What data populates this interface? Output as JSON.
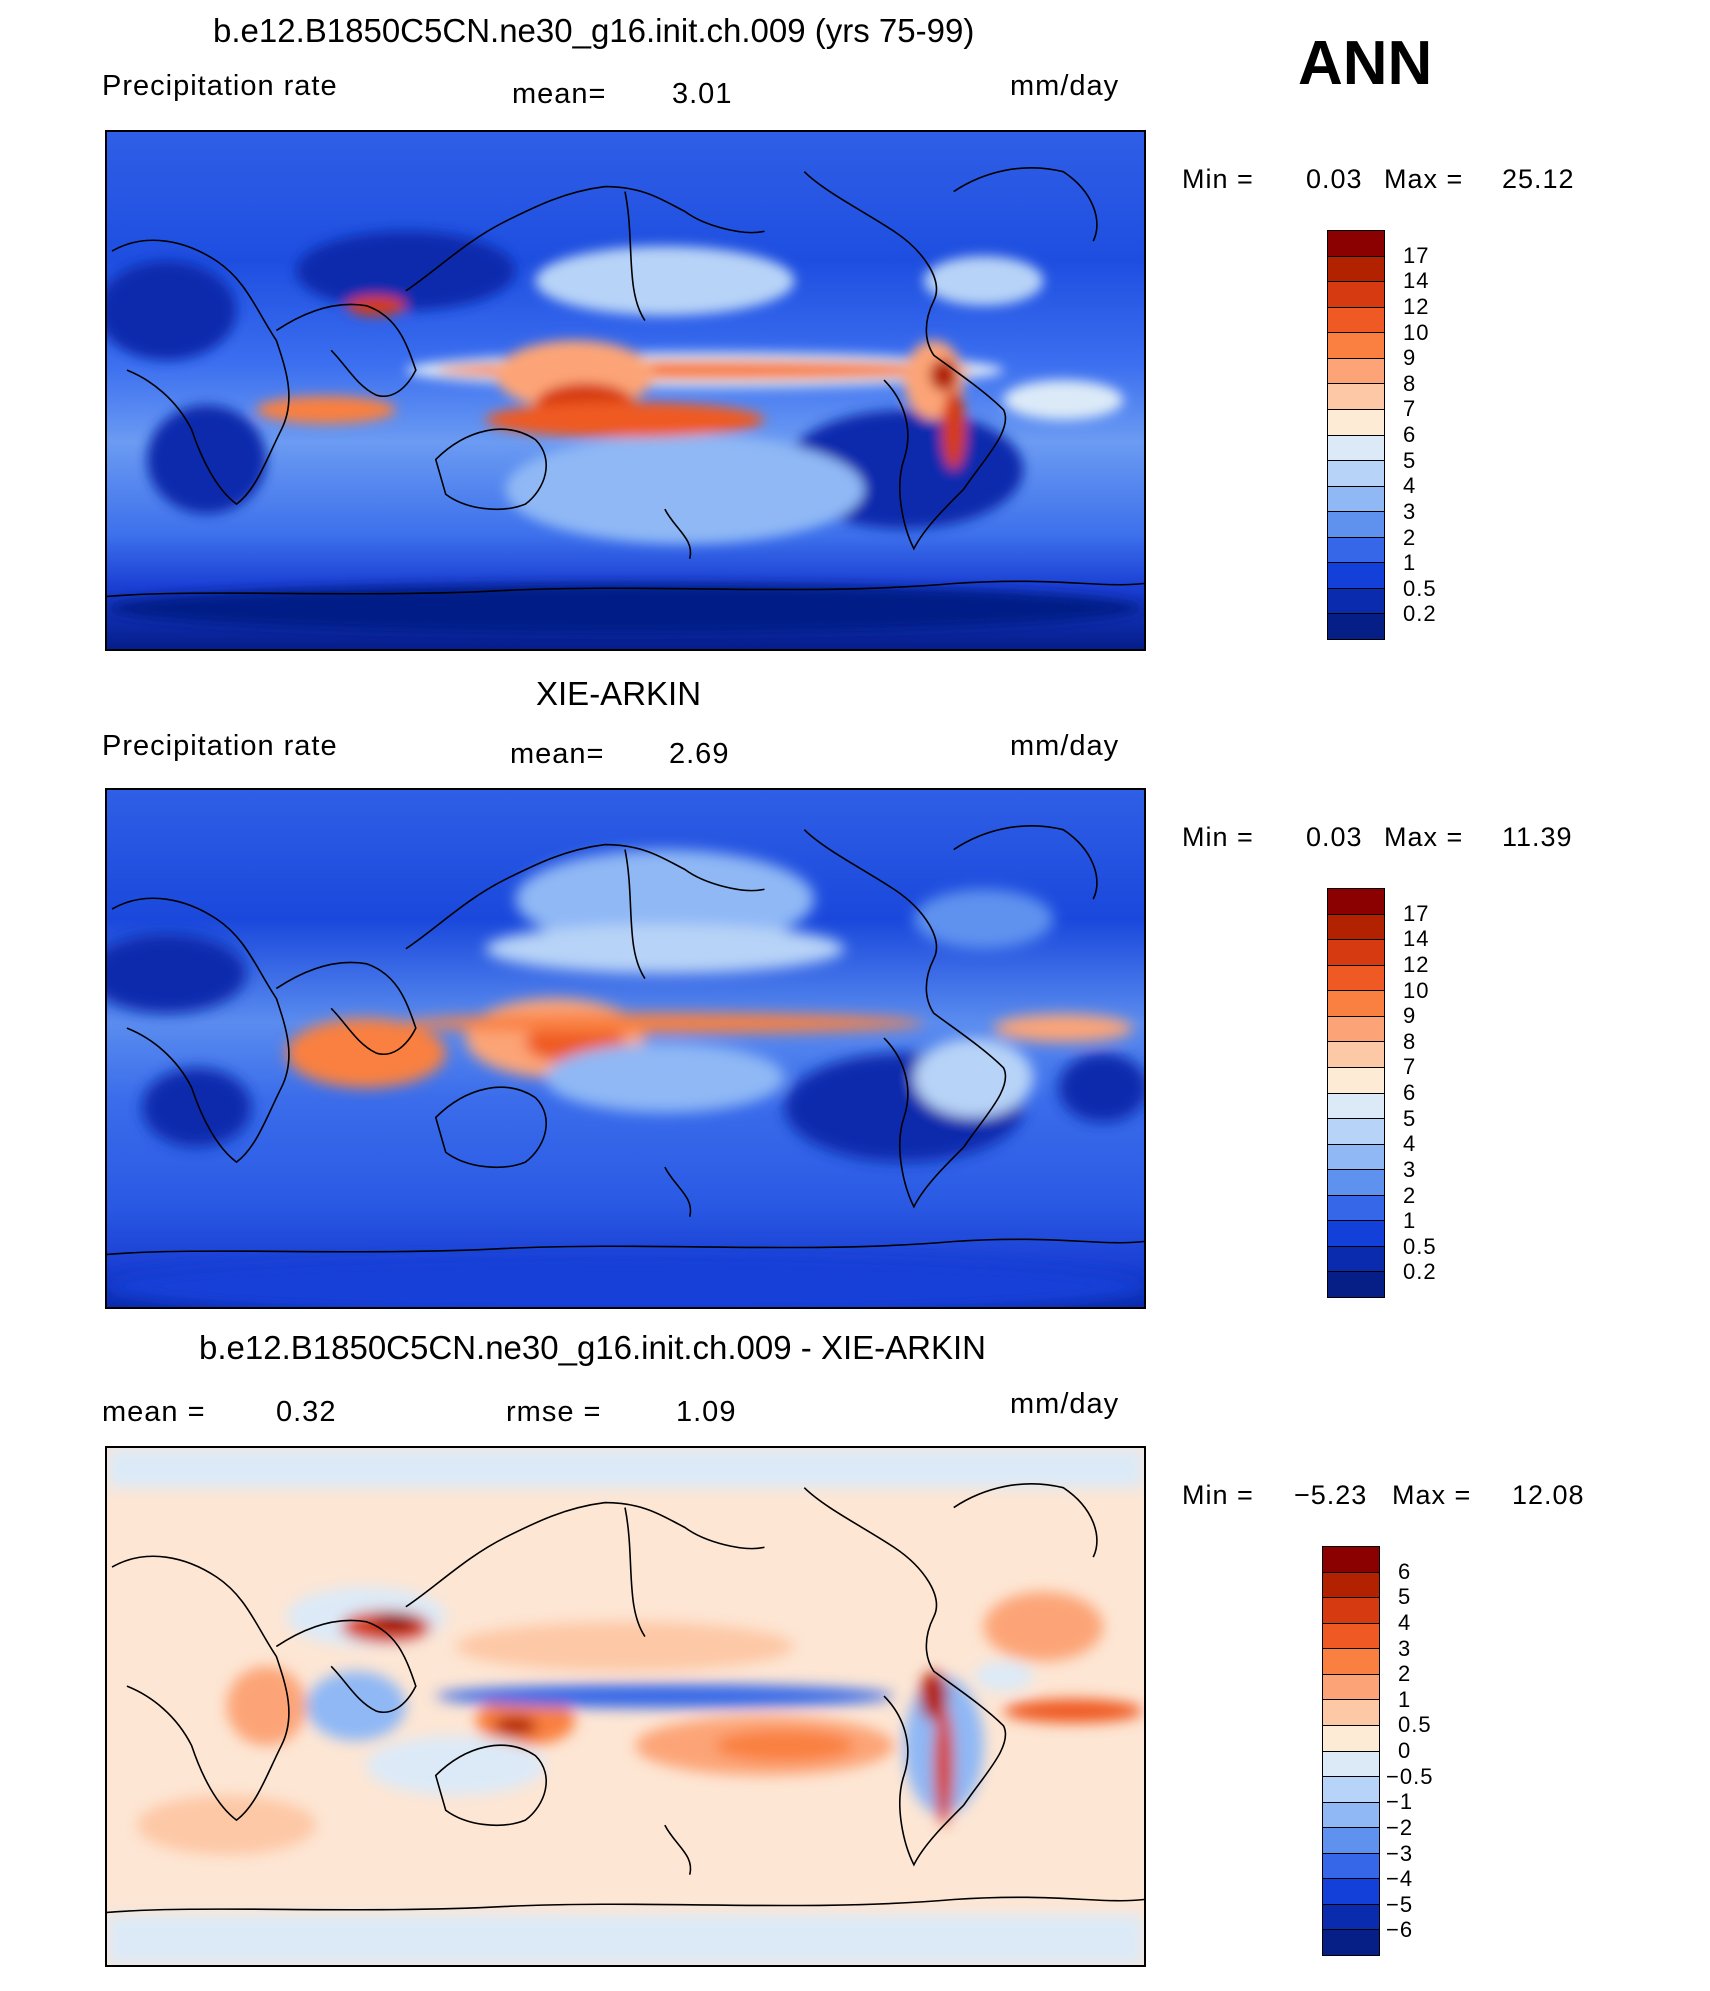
{
  "header": {
    "season": "ANN"
  },
  "panels": [
    {
      "title": "b.e12.B1850C5CN.ne30_g16.init.ch.009 (yrs 75-99)",
      "left_label": "Precipitation  rate",
      "center_label": "mean=",
      "center_value": "3.01",
      "units": "mm/day",
      "min_label": "Min  =",
      "min_value": "0.03",
      "max_label": "Max  =",
      "max_value": "25.12",
      "colorbar_labels": [
        "17",
        "14",
        "12",
        "10",
        "9",
        "8",
        "7",
        "6",
        "5",
        "4",
        "3",
        "2",
        "1",
        "0.5",
        "0.2"
      ],
      "colorbar_colors": [
        "#8b0000",
        "#b22200",
        "#d63a10",
        "#ef5a24",
        "#f98040",
        "#fca477",
        "#fdc8a6",
        "#feebd6",
        "#dceaf8",
        "#b7d3f7",
        "#8fb8f5",
        "#5f92ef",
        "#3567e8",
        "#1240d8",
        "#0a2bad",
        "#061f86"
      ]
    },
    {
      "title": "XIE-ARKIN",
      "left_label": "Precipitation  rate",
      "center_label": "mean=",
      "center_value": "2.69",
      "units": "mm/day",
      "min_label": "Min  =",
      "min_value": "0.03",
      "max_label": "Max  =",
      "max_value": "11.39",
      "colorbar_labels": [
        "17",
        "14",
        "12",
        "10",
        "9",
        "8",
        "7",
        "6",
        "5",
        "4",
        "3",
        "2",
        "1",
        "0.5",
        "0.2"
      ],
      "colorbar_colors": [
        "#8b0000",
        "#b22200",
        "#d63a10",
        "#ef5a24",
        "#f98040",
        "#fca477",
        "#fdc8a6",
        "#feebd6",
        "#dceaf8",
        "#b7d3f7",
        "#8fb8f5",
        "#5f92ef",
        "#3567e8",
        "#1240d8",
        "#0a2bad",
        "#061f86"
      ]
    },
    {
      "title": "b.e12.B1850C5CN.ne30_g16.init.ch.009 - XIE-ARKIN",
      "left_label": "mean  =",
      "left_value": "0.32",
      "center_label": "rmse  =",
      "center_value": "1.09",
      "units": "mm/day",
      "min_label": "Min  =",
      "min_value": "−5.23",
      "max_label": "Max  =",
      "max_value": "12.08",
      "colorbar_labels": [
        "6",
        "5",
        "4",
        "3",
        "2",
        "1",
        "0.5",
        "0",
        "−0.5",
        "−1",
        "−2",
        "−3",
        "−4",
        "−5",
        "−6"
      ],
      "colorbar_colors": [
        "#8b0000",
        "#b22200",
        "#d63a10",
        "#ef5a24",
        "#f98040",
        "#fca477",
        "#fdc8a6",
        "#feebd6",
        "#dceaf8",
        "#b7d3f7",
        "#8fb8f5",
        "#5f92ef",
        "#3567e8",
        "#1240d8",
        "#0a2bad",
        "#061f86"
      ]
    }
  ]
}
